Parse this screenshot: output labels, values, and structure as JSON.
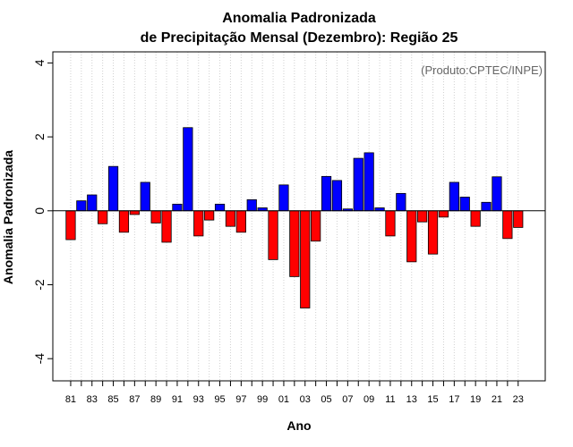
{
  "chart_data": {
    "type": "bar",
    "title": "Anomalia Padronizada",
    "subtitle": "de Precipitação Mensal (Dezembro): Região 25",
    "xlabel": "Ano",
    "ylabel": "Anomalia Padronizada",
    "credit": "(Produto:CPTEC/INPE)",
    "ylim": [
      -4.6,
      4.3
    ],
    "yticks": [
      -4,
      -2,
      0,
      2,
      4
    ],
    "grid": "vertical-dotted",
    "categories": [
      "81",
      "82",
      "83",
      "84",
      "85",
      "86",
      "87",
      "88",
      "89",
      "90",
      "91",
      "92",
      "93",
      "94",
      "95",
      "96",
      "97",
      "98",
      "99",
      "00",
      "01",
      "02",
      "03",
      "04",
      "05",
      "06",
      "07",
      "08",
      "09",
      "10",
      "11",
      "12",
      "13",
      "14",
      "15",
      "16",
      "17",
      "18",
      "19",
      "20",
      "21",
      "22",
      "23"
    ],
    "xtick_labels": [
      "81",
      "83",
      "85",
      "87",
      "89",
      "91",
      "93",
      "95",
      "97",
      "99",
      "01",
      "03",
      "05",
      "07",
      "09",
      "11",
      "13",
      "15",
      "17",
      "19",
      "21",
      "23"
    ],
    "values": [
      -0.78,
      0.27,
      0.43,
      -0.35,
      1.2,
      -0.58,
      -0.1,
      0.77,
      -0.33,
      -0.85,
      0.18,
      2.25,
      -0.68,
      -0.25,
      0.18,
      -0.42,
      -0.58,
      0.3,
      0.08,
      -1.32,
      0.7,
      -1.78,
      -2.63,
      -0.82,
      0.93,
      0.82,
      0.05,
      1.42,
      1.57,
      0.08,
      -0.68,
      0.47,
      -1.38,
      -0.3,
      -1.17,
      -0.17,
      0.77,
      0.37,
      -0.42,
      0.23,
      0.92,
      -0.75,
      -0.45
    ],
    "colors": {
      "positive": "#0000ff",
      "negative": "#ff0000",
      "edge": "#000000",
      "grid": "#d0d0d0"
    }
  }
}
